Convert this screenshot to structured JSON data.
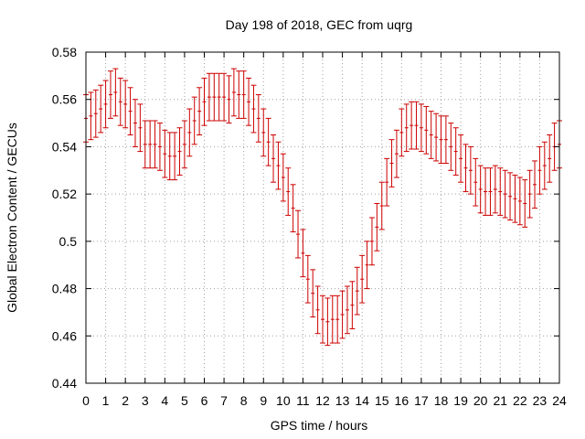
{
  "chart_data": {
    "type": "scatter",
    "title": "Day 198 of 2018, GEC from uqrg",
    "xlabel": "GPS time / hours",
    "ylabel": "Global Electron Content / GECUs",
    "xlim": [
      0,
      24
    ],
    "ylim": [
      0.44,
      0.58
    ],
    "x_ticks": [
      0,
      1,
      2,
      3,
      4,
      5,
      6,
      7,
      8,
      9,
      10,
      11,
      12,
      13,
      14,
      15,
      16,
      17,
      18,
      19,
      20,
      21,
      22,
      23,
      24
    ],
    "y_ticks": [
      0.44,
      0.46,
      0.48,
      0.5,
      0.52,
      0.54,
      0.56,
      0.58
    ],
    "y_tick_labels": [
      "0.44",
      "0.46",
      "0.48",
      "0.5",
      "0.52",
      "0.54",
      "0.56",
      "0.58"
    ],
    "grid": true,
    "error_bar_halfwidth": 0.01,
    "series_color": "#cc0000",
    "x": [
      0,
      0.25,
      0.5,
      0.75,
      1,
      1.25,
      1.5,
      1.75,
      2,
      2.25,
      2.5,
      2.75,
      3,
      3.25,
      3.5,
      3.75,
      4,
      4.25,
      4.5,
      4.75,
      5,
      5.25,
      5.5,
      5.75,
      6,
      6.25,
      6.5,
      6.75,
      7,
      7.25,
      7.5,
      7.75,
      8,
      8.25,
      8.5,
      8.75,
      9,
      9.25,
      9.5,
      9.75,
      10,
      10.25,
      10.5,
      10.75,
      11,
      11.25,
      11.5,
      11.75,
      12,
      12.25,
      12.5,
      12.75,
      13,
      13.25,
      13.5,
      13.75,
      14,
      14.25,
      14.5,
      14.75,
      15,
      15.25,
      15.5,
      15.75,
      16,
      16.25,
      16.5,
      16.75,
      17,
      17.25,
      17.5,
      17.75,
      18,
      18.25,
      18.5,
      18.75,
      19,
      19.25,
      19.5,
      19.75,
      20,
      20.25,
      20.5,
      20.75,
      21,
      21.25,
      21.5,
      21.75,
      22,
      22.25,
      22.5,
      22.75,
      23,
      23.25,
      23.5,
      23.75,
      24
    ],
    "y": [
      0.552,
      0.553,
      0.554,
      0.556,
      0.558,
      0.562,
      0.563,
      0.559,
      0.558,
      0.555,
      0.55,
      0.548,
      0.541,
      0.541,
      0.541,
      0.54,
      0.537,
      0.536,
      0.536,
      0.538,
      0.541,
      0.546,
      0.551,
      0.555,
      0.559,
      0.561,
      0.561,
      0.561,
      0.561,
      0.56,
      0.563,
      0.562,
      0.562,
      0.559,
      0.556,
      0.552,
      0.546,
      0.542,
      0.535,
      0.532,
      0.527,
      0.521,
      0.514,
      0.503,
      0.495,
      0.484,
      0.478,
      0.471,
      0.467,
      0.466,
      0.467,
      0.467,
      0.469,
      0.471,
      0.473,
      0.479,
      0.484,
      0.49,
      0.5,
      0.506,
      0.515,
      0.525,
      0.533,
      0.537,
      0.546,
      0.548,
      0.549,
      0.549,
      0.548,
      0.547,
      0.545,
      0.544,
      0.543,
      0.543,
      0.54,
      0.538,
      0.535,
      0.531,
      0.53,
      0.525,
      0.522,
      0.521,
      0.521,
      0.522,
      0.521,
      0.52,
      0.519,
      0.518,
      0.517,
      0.516,
      0.52,
      0.524,
      0.53,
      0.532,
      0.535,
      0.54,
      0.541
    ]
  }
}
